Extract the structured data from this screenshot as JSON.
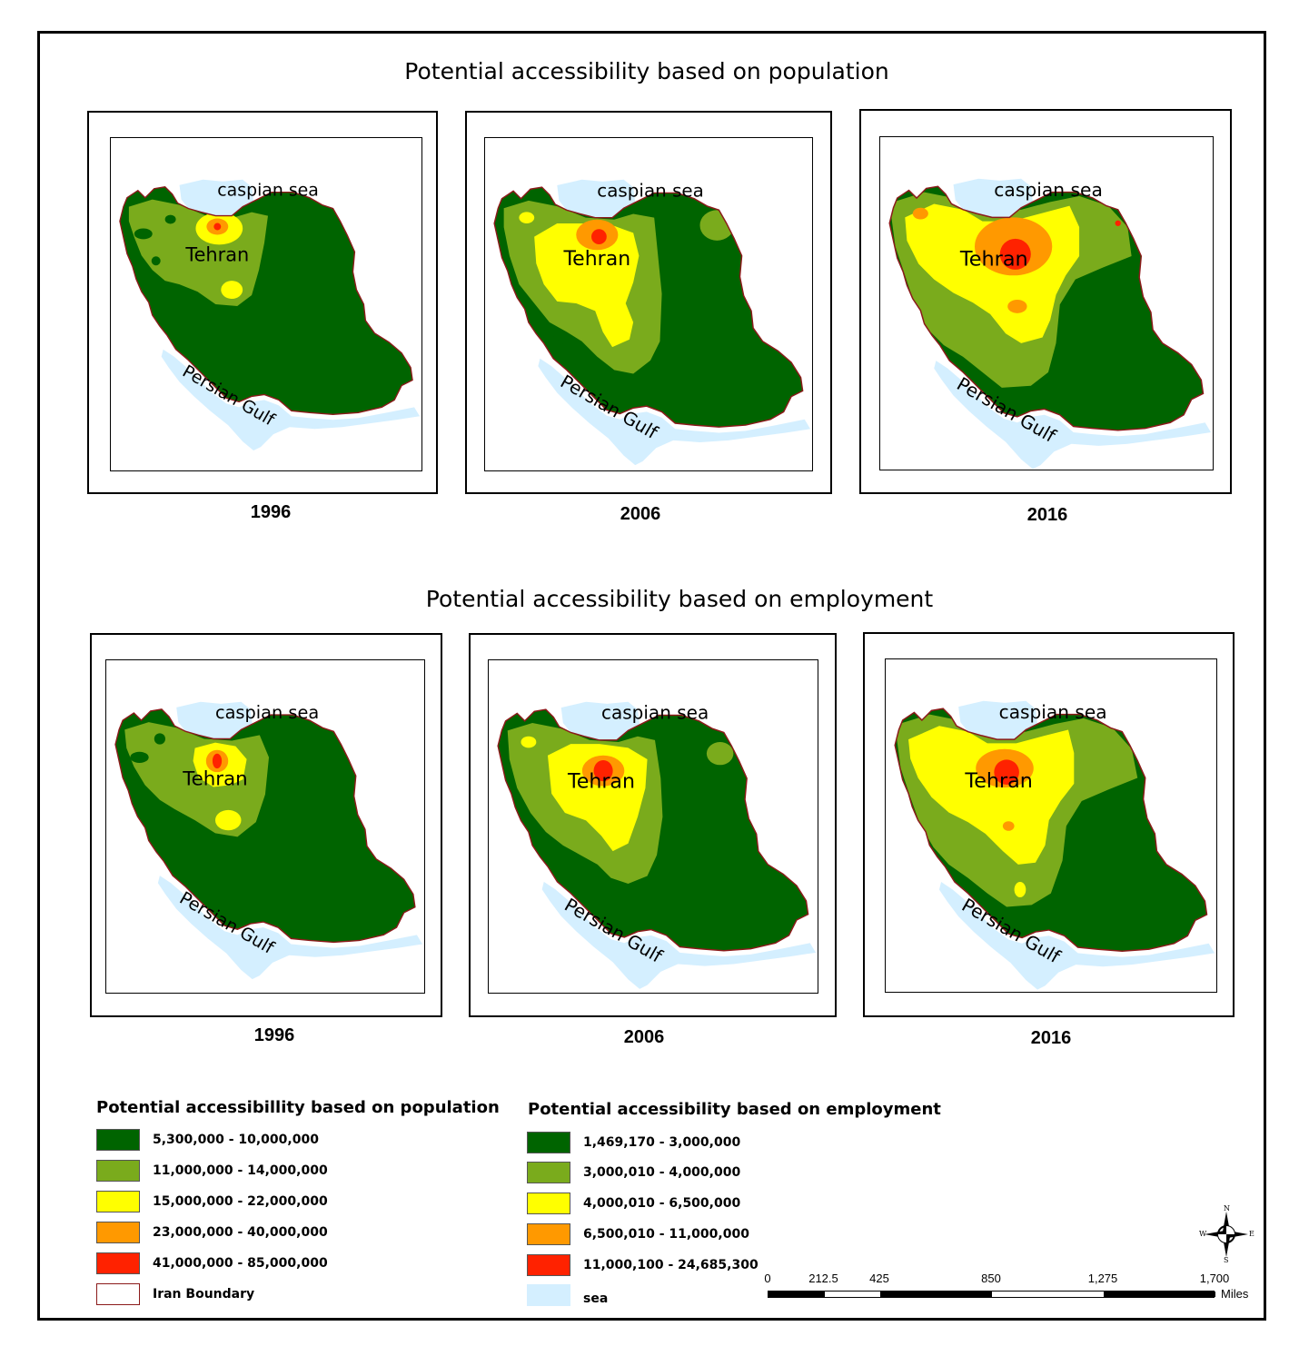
{
  "sections": [
    {
      "title": "Potential accessibility based on population",
      "maps": [
        {
          "year": "1996",
          "variant": "pop1996",
          "sea_label": "caspian sea",
          "city_label": "Tehran",
          "gulf_label": "Persian Gulf"
        },
        {
          "year": "2006",
          "variant": "pop2006",
          "sea_label": "caspian sea",
          "city_label": "Tehran",
          "gulf_label": "Persian Gulf"
        },
        {
          "year": "2016",
          "variant": "pop2016",
          "sea_label": "caspian sea",
          "city_label": "Tehran",
          "gulf_label": "Persian Gulf"
        }
      ]
    },
    {
      "title": "Potential accessibility based on employment",
      "maps": [
        {
          "year": "1996",
          "variant": "emp1996",
          "sea_label": "caspian sea",
          "city_label": "Tehran",
          "gulf_label": "Persian Gulf"
        },
        {
          "year": "2006",
          "variant": "emp2006",
          "sea_label": "caspian sea",
          "city_label": "Tehran",
          "gulf_label": "Persian Gulf"
        },
        {
          "year": "2016",
          "variant": "emp2016",
          "sea_label": "caspian sea",
          "city_label": "Tehran",
          "gulf_label": "Persian Gulf"
        }
      ]
    }
  ],
  "colors": {
    "class1": "#006400",
    "class2": "#7aab1c",
    "class3": "#ffff00",
    "class4": "#ff9900",
    "class5": "#ff2200",
    "sea": "#d4efff",
    "boundary": "#8b1a1a"
  },
  "legends": {
    "population": {
      "title": "Potential accessibillity based on population",
      "items": [
        {
          "label": "5,300,000 - 10,000,000",
          "color": "#006400"
        },
        {
          "label": "11,000,000 - 14,000,000",
          "color": "#7aab1c"
        },
        {
          "label": "15,000,000 - 22,000,000",
          "color": "#ffff00"
        },
        {
          "label": "23,000,000 - 40,000,000",
          "color": "#ff9900"
        },
        {
          "label": "41,000,000 - 85,000,000",
          "color": "#ff2200"
        },
        {
          "label": "Iran Boundary",
          "color": "#ffffff"
        }
      ]
    },
    "employment": {
      "title": "Potential accessibility based on employment",
      "items": [
        {
          "label": "1,469,170 - 3,000,000",
          "color": "#006400"
        },
        {
          "label": "3,000,010 - 4,000,000",
          "color": "#7aab1c"
        },
        {
          "label": "4,000,010 - 6,500,000",
          "color": "#ffff00"
        },
        {
          "label": "6,500,010 - 11,000,000",
          "color": "#ff9900"
        },
        {
          "label": "11,000,100 - 24,685,300",
          "color": "#ff2200"
        },
        {
          "label": "sea",
          "color": "#d4efff"
        }
      ]
    }
  },
  "scale_bar": {
    "ticks": [
      "0",
      "212.5",
      "425",
      "850",
      "1,275",
      "1,700"
    ],
    "tick_values": [
      0,
      212.5,
      425,
      850,
      1275,
      1700
    ],
    "unit": "Miles"
  },
  "compass": {
    "n": "N",
    "s": "S",
    "e": "E",
    "w": "W"
  }
}
